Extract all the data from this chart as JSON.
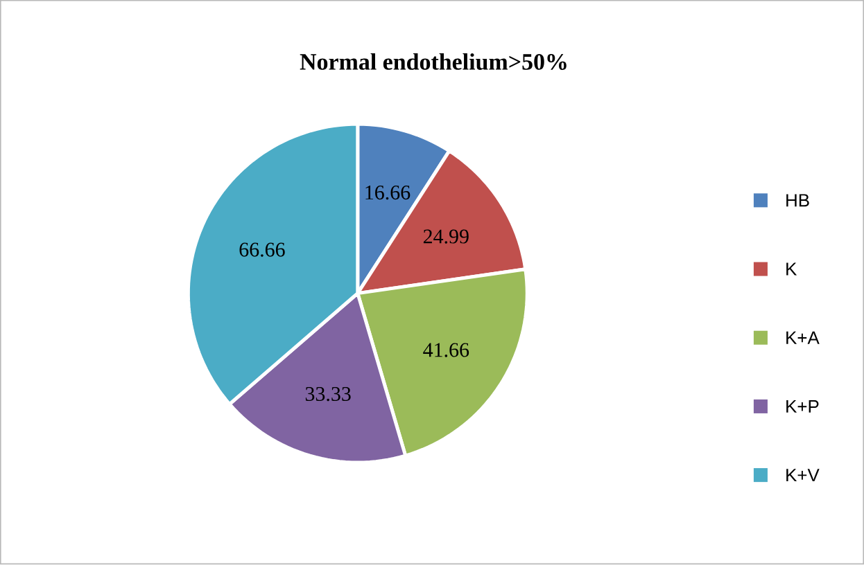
{
  "chart_data": {
    "type": "pie",
    "title": "Normal endothelium>50%",
    "categories": [
      "HB",
      "K",
      "K+A",
      "K+P",
      "K+V"
    ],
    "values": [
      16.66,
      24.99,
      41.66,
      33.33,
      66.66
    ],
    "colors": [
      "#4f81bd",
      "#c0504d",
      "#9bbb59",
      "#8064a2",
      "#4bacc6"
    ],
    "data_labels": true,
    "legend": "right"
  }
}
